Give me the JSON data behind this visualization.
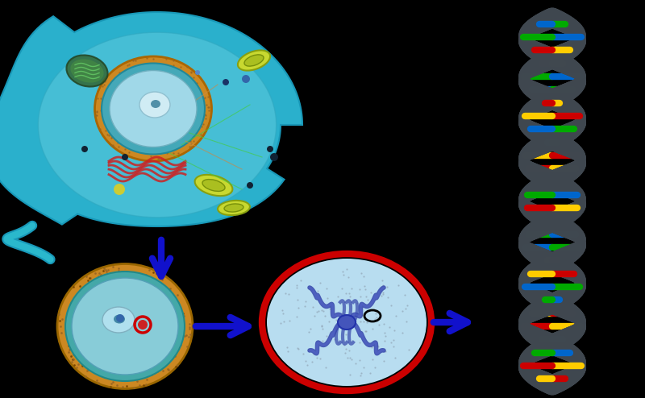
{
  "background_color": "#000000",
  "arrow_color": "#1111cc",
  "dna_backbone_color": "#404850",
  "dna_colors_left": [
    "#cc0000",
    "#ffcc00",
    "#0066cc",
    "#00aa00"
  ],
  "dna_colors_right": [
    "#ffcc00",
    "#cc0000",
    "#00aa00",
    "#0066cc"
  ],
  "cell_outer_color": "#2ab0cc",
  "cell_inner_color": "#5ac8dc",
  "cell_edge_color": "#1898b8",
  "nucleus_orange": "#d4943a",
  "nucleus_teal": "#44a8b0",
  "nucleus_light": "#88cce0",
  "nucleolus_color": "#aadde8",
  "er_color": "#cc2222",
  "mito_color": "#ccdd44",
  "chloro_color": "#448844",
  "chr_bg": "#b8ddf0",
  "chr_color": "#3344aa",
  "chr_border": "#cc0000",
  "fig_width": 8.0,
  "fig_height": 4.94,
  "dpi": 100
}
